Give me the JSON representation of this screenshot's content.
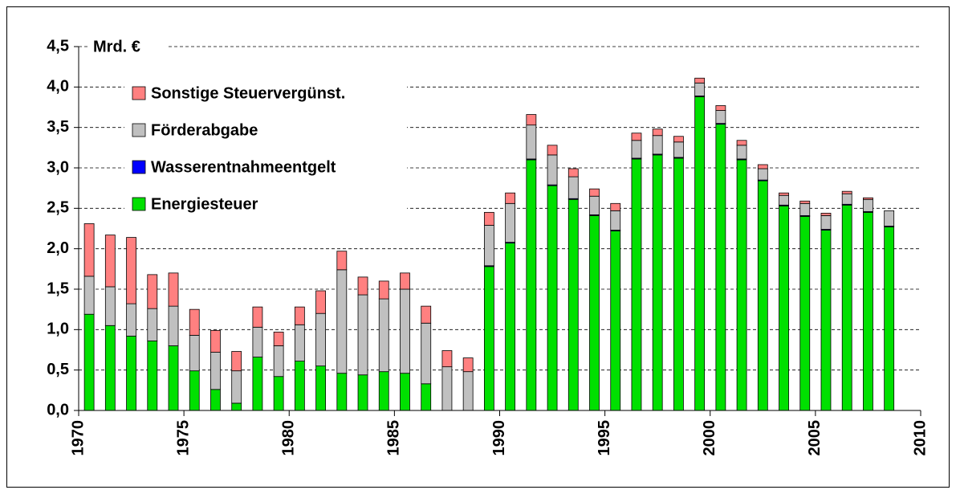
{
  "chart_data": {
    "type": "stacked_bar",
    "ylabel": "Mrd. €",
    "x": [
      1970,
      1971,
      1972,
      1973,
      1974,
      1975,
      1976,
      1977,
      1978,
      1979,
      1980,
      1981,
      1982,
      1983,
      1984,
      1985,
      1986,
      1987,
      1988,
      1989,
      1990,
      1991,
      1992,
      1993,
      1994,
      1995,
      1996,
      1997,
      1998,
      1999,
      2000,
      2001,
      2002,
      2003,
      2004,
      2005,
      2006,
      2007,
      2008
    ],
    "series": [
      {
        "name": "Energiesteuer",
        "color": "#00e000",
        "values": [
          1.19,
          1.05,
          0.92,
          0.86,
          0.8,
          0.49,
          0.26,
          0.09,
          0.66,
          0.42,
          0.61,
          0.55,
          0.46,
          0.44,
          0.48,
          0.46,
          0.33,
          0,
          0,
          1.78,
          2.07,
          3.1,
          2.78,
          2.61,
          2.41,
          2.22,
          3.11,
          3.16,
          3.12,
          3.88,
          3.54,
          3.1,
          2.84,
          2.53,
          2.4,
          2.23,
          2.54,
          2.45,
          2.27
        ]
      },
      {
        "name": "Wasserentnahmeentgelt",
        "color": "#0000ff",
        "values": [
          0,
          0,
          0,
          0,
          0,
          0,
          0,
          0,
          0,
          0,
          0,
          0,
          0,
          0,
          0,
          0,
          0,
          0,
          0,
          0.01,
          0.01,
          0.01,
          0.01,
          0.01,
          0.01,
          0.01,
          0.01,
          0.01,
          0.01,
          0.01,
          0.01,
          0.01,
          0.01,
          0.01,
          0.01,
          0.01,
          0.01,
          0.01,
          0.01
        ]
      },
      {
        "name": "Förderabgabe",
        "color": "#c0c0c0",
        "values": [
          0.47,
          0.48,
          0.4,
          0.4,
          0.49,
          0.44,
          0.46,
          0.4,
          0.37,
          0.38,
          0.45,
          0.65,
          1.28,
          0.99,
          0.9,
          1.04,
          0.75,
          0.54,
          0.48,
          0.5,
          0.48,
          0.42,
          0.37,
          0.27,
          0.23,
          0.24,
          0.22,
          0.23,
          0.19,
          0.16,
          0.16,
          0.17,
          0.14,
          0.12,
          0.15,
          0.17,
          0.13,
          0.15,
          0.19
        ]
      },
      {
        "name": "Sonstige Steuervergünst.",
        "color": "#ff8080",
        "values": [
          0.65,
          0.64,
          0.82,
          0.42,
          0.41,
          0.32,
          0.27,
          0.24,
          0.25,
          0.17,
          0.22,
          0.28,
          0.23,
          0.22,
          0.22,
          0.2,
          0.21,
          0.2,
          0.17,
          0.16,
          0.13,
          0.13,
          0.12,
          0.1,
          0.09,
          0.09,
          0.09,
          0.08,
          0.07,
          0.06,
          0.06,
          0.06,
          0.05,
          0.03,
          0.03,
          0.03,
          0.03,
          0.02,
          0
        ]
      }
    ],
    "xlim": [
      1970,
      2010
    ],
    "xticks": [
      1970,
      1975,
      1980,
      1985,
      1990,
      1995,
      2000,
      2005,
      2010
    ],
    "ylim": [
      0,
      4.5
    ],
    "yticks": [
      {
        "value": 0,
        "label": "0,0"
      },
      {
        "value": 0.5,
        "label": "0,5"
      },
      {
        "value": 1,
        "label": "1,0"
      },
      {
        "value": 1.5,
        "label": "1,5"
      },
      {
        "value": 2,
        "label": "2,0"
      },
      {
        "value": 2.5,
        "label": "2,5"
      },
      {
        "value": 3,
        "label": "3,0"
      },
      {
        "value": 3.5,
        "label": "3,5"
      },
      {
        "value": 4,
        "label": "4,0"
      },
      {
        "value": 4.5,
        "label": "4,5"
      }
    ],
    "grid": true,
    "legend": "top-left"
  }
}
